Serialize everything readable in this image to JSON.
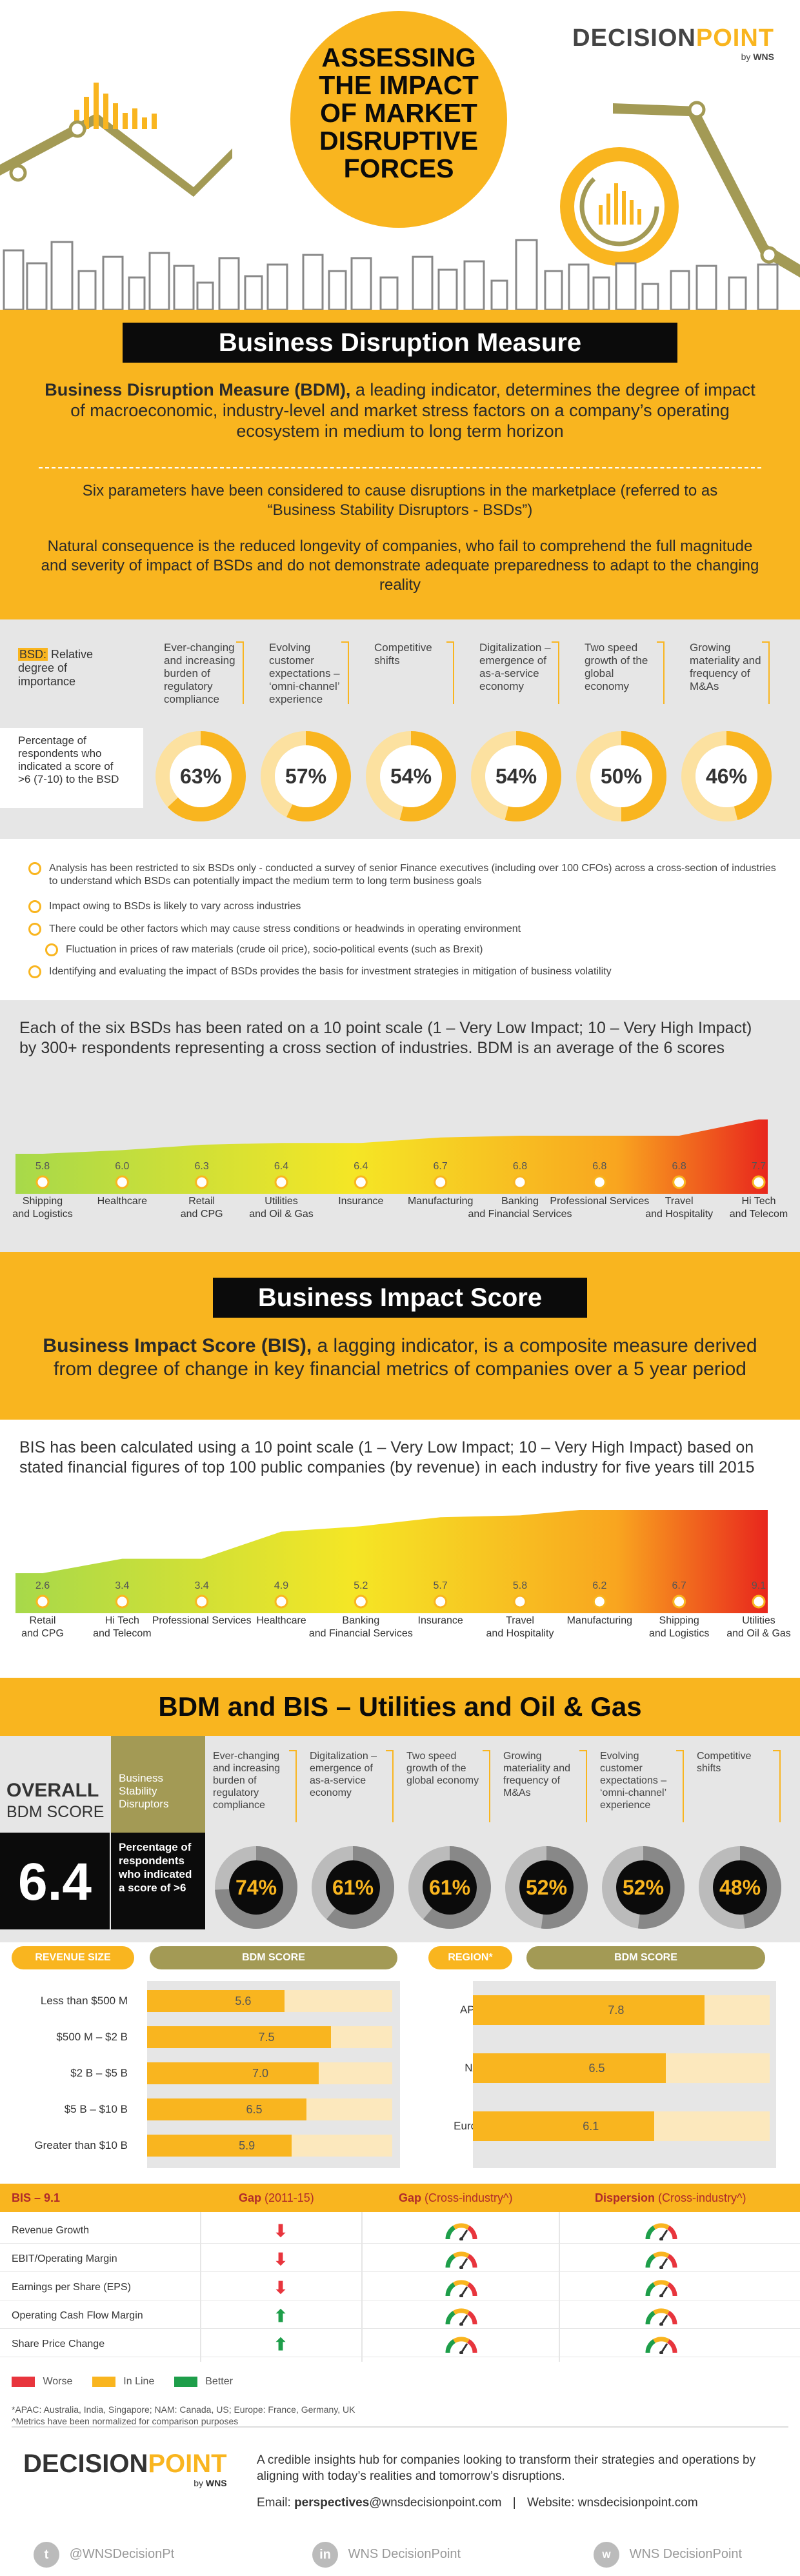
{
  "brand": {
    "name": "DECISIONPOINT",
    "name_accent": "POINT",
    "name_main": "DECISION",
    "by": "by",
    "company": "WNS"
  },
  "hero": {
    "title_lines": [
      "ASSESSING",
      "THE IMPACT",
      "OF MARKET",
      "DISRUPTIVE",
      "FORCES"
    ]
  },
  "bdm": {
    "banner": "Business Disruption Measure",
    "intro_bold": "Business Disruption Measure (BDM),",
    "intro_rest": " a leading indicator, determines the degree of impact of macroeconomic, industry-level and market stress factors on a company’s operating ecosystem in medium to long term horizon",
    "params_text": "Six parameters have been considered to cause disruptions in the marketplace (referred to as “Business Stability Disruptors - BSDs”)",
    "consequence_text": "Natural consequence is the reduced longevity of companies, who fail to comprehend the full magnitude and severity of impact of BSDs and do not demonstrate adequate preparedness to adapt to the changing reality",
    "bsd_label_highlight": "BSD:",
    "bsd_label_rest": " Relative degree of importance",
    "pct_label": "Percentage of respondents who indicated a score of >6 (7-10) to the BSD",
    "bsds": [
      {
        "label": "Ever-changing and increasing burden of regulatory compliance",
        "pct": "63%",
        "value": 63
      },
      {
        "label": "Evolving customer expectations – ‘omni-channel’ experience",
        "pct": "57%",
        "value": 57
      },
      {
        "label": "Competitive shifts",
        "pct": "54%",
        "value": 54
      },
      {
        "label": "Digitalization – emergence of as-a-service economy",
        "pct": "54%",
        "value": 54
      },
      {
        "label": "Two speed growth of the global economy",
        "pct": "50%",
        "value": 50
      },
      {
        "label": "Growing materiality and frequency of M&As",
        "pct": "46%",
        "value": 46
      }
    ],
    "bullets": [
      "Analysis has been restricted to six BSDs only - conducted a survey of senior Finance executives (including over 100 CFOs) across a cross-section of industries to understand which BSDs can potentially impact the medium term to long term business goals",
      "Impact owing to BSDs is likely to vary across industries",
      "There could be other factors which may cause stress conditions or headwinds in operating environment",
      "Fluctuation in prices of raw materials (crude oil price), socio-political events (such as Brexit)",
      "Identifying and evaluating the impact of BSDs provides the basis for investment strategies in mitigation of business volatility"
    ],
    "rating_text": "Each of the six BSDs has been rated on a 10 point scale (1 – Very Low Impact; 10 – Very High Impact) by 300+ respondents representing a cross section of industries. BDM is an average of the 6 scores"
  },
  "chart_data": [
    {
      "type": "area",
      "title": "",
      "categories": [
        "Shipping and Logistics",
        "Healthcare",
        "Retail and CPG",
        "Utilities and Oil & Gas",
        "Insurance",
        "Manufacturing",
        "Banking and Financial Services",
        "Professional Services",
        "Travel and Hospitality",
        "Hi Tech and Telecom"
      ],
      "values": [
        5.8,
        6.0,
        6.3,
        6.4,
        6.4,
        6.7,
        6.8,
        6.8,
        6.8,
        7.7
      ],
      "value_labels": [
        "5.8",
        "6.0",
        "6.3",
        "6.4",
        "6.4",
        "6.7",
        "6.8",
        "6.8",
        "6.8",
        "7.7"
      ]
    },
    {
      "type": "area",
      "title": "",
      "categories": [
        "Retail and CPG",
        "Hi Tech and Telecom",
        "Professional Services",
        "Healthcare",
        "Banking and Financial Services",
        "Insurance",
        "Travel and Hospitality",
        "Manufacturing",
        "Shipping and Logistics",
        "Utilities and Oil & Gas"
      ],
      "values": [
        2.6,
        3.4,
        3.4,
        4.9,
        5.2,
        5.7,
        5.8,
        6.2,
        6.7,
        9.1
      ],
      "value_labels": [
        "2.6",
        "3.4",
        "3.4",
        "4.9",
        "5.2",
        "5.7",
        "5.8",
        "6.2",
        "6.7",
        "9.1"
      ]
    },
    {
      "type": "bar",
      "title": "BDM SCORE",
      "header": "REVENUE SIZE",
      "categories": [
        "Less than $500 M",
        "$500 M – $2 B",
        "$2 B – $5 B",
        "$5 B – $10 B",
        "Greater than $10 B"
      ],
      "values": [
        5.6,
        7.5,
        7.0,
        6.5,
        5.9
      ],
      "value_labels": [
        "5.6",
        "7.5",
        "7.0",
        "6.5",
        "5.9"
      ],
      "xlim": [
        0,
        10
      ]
    },
    {
      "type": "bar",
      "title": "BDM SCORE",
      "header": "REGION*",
      "categories": [
        "APAC",
        "NAM",
        "Europe"
      ],
      "values": [
        7.8,
        6.5,
        6.1
      ],
      "value_labels": [
        "7.8",
        "6.5",
        "6.1"
      ],
      "xlim": [
        0,
        10
      ]
    }
  ],
  "bis": {
    "banner": "Business Impact Score",
    "intro_bold": "Business Impact Score (BIS),",
    "intro_rest": " a lagging indicator, is a composite measure derived from degree of change in key financial metrics of companies over a 5 year period",
    "calc_text": "BIS has been calculated using a 10 point scale (1 – Very Low Impact; 10 – Very High Impact) based on stated financial figures of top 100 public companies (by revenue) in each industry for five years till 2015"
  },
  "util": {
    "banner": "BDM and BIS –  Utilities and Oil & Gas",
    "overall_label_1": "OVERALL",
    "overall_label_2": "BDM SCORE",
    "overall_score": "6.4",
    "bsd_head": "Business Stability Disruptors",
    "pct_head": "Percentage of respondents who indicated a score of >6",
    "bsds": [
      {
        "label": "Ever-changing and increasing burden of regulatory compliance",
        "pct": "74%",
        "value": 74
      },
      {
        "label": "Digitalization – emergence of as-a-service economy",
        "pct": "61%",
        "value": 61
      },
      {
        "label": "Two speed growth of the global economy",
        "pct": "61%",
        "value": 61
      },
      {
        "label": "Growing materiality and frequency of M&As",
        "pct": "52%",
        "value": 52
      },
      {
        "label": "Evolving customer expectations – ‘omni-channel’ experience",
        "pct": "52%",
        "value": 52
      },
      {
        "label": "Competitive shifts",
        "pct": "48%",
        "value": 48
      }
    ],
    "table": {
      "title": "BIS – 9.1",
      "columns": [
        "Gap (2011-15)",
        "Gap (Cross-industry^)",
        "Dispersion (Cross-industry^)"
      ],
      "col_main": [
        "Gap",
        "Gap",
        "Dispersion"
      ],
      "col_sub": [
        " (2011-15)",
        " (Cross-industry^)",
        " (Cross-industry^)"
      ],
      "rows": [
        {
          "label": "Revenue Growth",
          "gap": "down"
        },
        {
          "label": "EBIT/Operating Margin",
          "gap": "down"
        },
        {
          "label": "Earnings per Share (EPS)",
          "gap": "down"
        },
        {
          "label": "Operating Cash Flow Margin",
          "gap": "up"
        },
        {
          "label": "Share Price Change",
          "gap": "up"
        }
      ]
    },
    "legend": [
      {
        "label": "Worse",
        "color": "#e8353d"
      },
      {
        "label": "In Line",
        "color": "#F9B51F"
      },
      {
        "label": "Better",
        "color": "#1e9e4a"
      }
    ],
    "footnotes": [
      "*APAC: Australia, India, Singapore; NAM: Canada, US; Europe: France, Germany, UK",
      "^Metrics have been normalized for comparison purposes"
    ]
  },
  "footer": {
    "tagline": "A credible insights hub for companies looking to transform their strategies and operations by aligning with today’s realities and tomorrow’s disruptions.",
    "email_label": "Email: ",
    "email_bold": "perspectives",
    "email_rest": "@wnsdecisionpoint.com",
    "sep": "|",
    "website_label": "Website: ",
    "website": "wnsdecisionpoint.com",
    "social": [
      {
        "icon": "twitter-icon",
        "label": "@WNSDecisionPt"
      },
      {
        "icon": "linkedin-icon",
        "label": "WNS DecisionPoint"
      },
      {
        "icon": "wns-icon",
        "label": "WNS DecisionPoint"
      }
    ]
  },
  "colors": {
    "accent": "#F9B51F",
    "dark": "#0b0b0b",
    "olive": "#A39A55",
    "grey": "#e6e6e6"
  }
}
